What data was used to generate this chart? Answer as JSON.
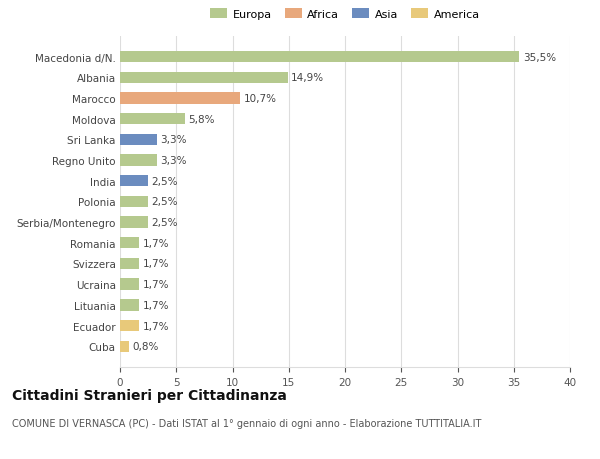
{
  "categories": [
    "Macedonia d/N.",
    "Albania",
    "Marocco",
    "Moldova",
    "Sri Lanka",
    "Regno Unito",
    "India",
    "Polonia",
    "Serbia/Montenegro",
    "Romania",
    "Svizzera",
    "Ucraina",
    "Lituania",
    "Ecuador",
    "Cuba"
  ],
  "values": [
    35.5,
    14.9,
    10.7,
    5.8,
    3.3,
    3.3,
    2.5,
    2.5,
    2.5,
    1.7,
    1.7,
    1.7,
    1.7,
    1.7,
    0.8
  ],
  "labels": [
    "35,5%",
    "14,9%",
    "10,7%",
    "5,8%",
    "3,3%",
    "3,3%",
    "2,5%",
    "2,5%",
    "2,5%",
    "1,7%",
    "1,7%",
    "1,7%",
    "1,7%",
    "1,7%",
    "0,8%"
  ],
  "colors": [
    "#b5c98e",
    "#b5c98e",
    "#e8a87c",
    "#b5c98e",
    "#6b8cbf",
    "#b5c98e",
    "#6b8cbf",
    "#b5c98e",
    "#b5c98e",
    "#b5c98e",
    "#b5c98e",
    "#b5c98e",
    "#b5c98e",
    "#e8c97a",
    "#e8c97a"
  ],
  "legend": [
    {
      "label": "Europa",
      "color": "#b5c98e"
    },
    {
      "label": "Africa",
      "color": "#e8a87c"
    },
    {
      "label": "Asia",
      "color": "#6b8cbf"
    },
    {
      "label": "America",
      "color": "#e8c97a"
    }
  ],
  "title": "Cittadini Stranieri per Cittadinanza",
  "subtitle": "COMUNE DI VERNASCA (PC) - Dati ISTAT al 1° gennaio di ogni anno - Elaborazione TUTTITALIA.IT",
  "xlim": [
    0,
    40
  ],
  "xticks": [
    0,
    5,
    10,
    15,
    20,
    25,
    30,
    35,
    40
  ],
  "bg_color": "#ffffff",
  "grid_color": "#dddddd",
  "bar_height": 0.55,
  "label_fontsize": 7.5,
  "tick_fontsize": 7.5,
  "title_fontsize": 10,
  "subtitle_fontsize": 7
}
